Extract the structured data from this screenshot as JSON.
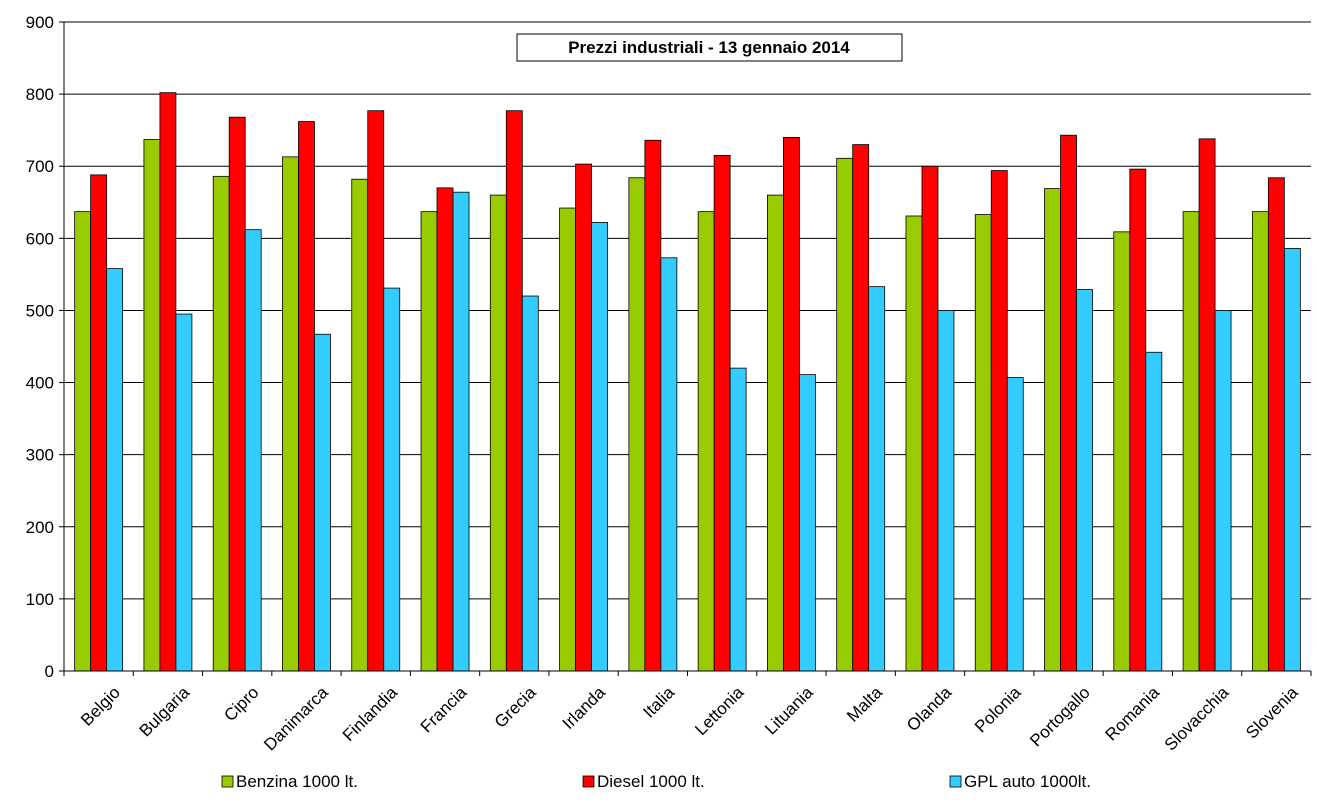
{
  "chart_data": {
    "type": "bar",
    "title": "Prezzi industriali -  13 gennaio  2014",
    "categories": [
      "Belgio",
      "Bulgaria",
      "Cipro",
      "Danimarca",
      "Finlandia",
      "Francia",
      "Grecia",
      "Irlanda",
      "Italia",
      "Lettonia",
      "Lituania",
      "Malta",
      "Olanda",
      "Polonia",
      "Portogallo",
      "Romania",
      "Slovacchia",
      "Slovenia"
    ],
    "series": [
      {
        "name": "Benzina 1000 lt.",
        "color": "#99cc00",
        "values": [
          637,
          737,
          686,
          713,
          682,
          637,
          660,
          642,
          684,
          637,
          660,
          711,
          631,
          633,
          669,
          609,
          637,
          637
        ]
      },
      {
        "name": "Diesel 1000 lt.",
        "color": "#ff0000",
        "values": [
          688,
          802,
          768,
          762,
          777,
          670,
          777,
          703,
          736,
          715,
          740,
          730,
          700,
          694,
          743,
          696,
          738,
          684
        ]
      },
      {
        "name": "GPL auto 1000lt.",
        "color": "#33ccff",
        "values": [
          558,
          495,
          612,
          467,
          531,
          664,
          520,
          622,
          573,
          420,
          411,
          533,
          500,
          407,
          529,
          442,
          500,
          586
        ]
      }
    ],
    "yticks": [
      "0",
      "100",
      "200",
      "300",
      "400",
      "500",
      "600",
      "700",
      "800",
      "900"
    ],
    "ylim": [
      0,
      900
    ],
    "grid": true,
    "legend_position": "bottom"
  }
}
